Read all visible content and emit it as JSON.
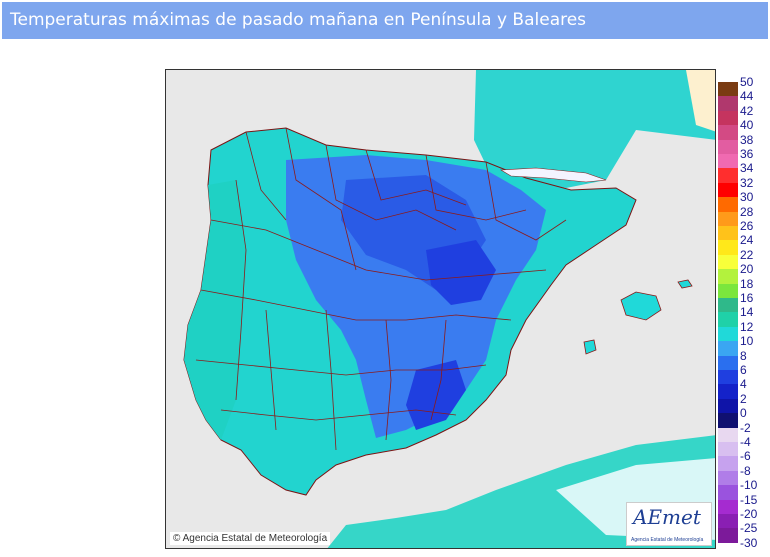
{
  "title": "Temperaturas máximas de pasado mañana en Península y Baleares",
  "copyright": "© Agencia Estatal de Meteorología",
  "logo": {
    "name": "AEmet",
    "subtitle": "Agencia Estatal de Meteorología"
  },
  "colors": {
    "sea": "#e8e8e8",
    "foreign_land": "#d9f7f7",
    "africa": "#ccf0e8",
    "france_top": "#fdf0cf",
    "boundaries": "#8b1a1a",
    "title_bar": "#7ea6ee"
  },
  "legend": {
    "labels": [
      "50",
      "44",
      "42",
      "40",
      "38",
      "36",
      "34",
      "32",
      "30",
      "28",
      "26",
      "24",
      "22",
      "20",
      "18",
      "16",
      "14",
      "12",
      "10",
      "8",
      "6",
      "4",
      "2",
      "0",
      "-2",
      "-4",
      "-6",
      "-8",
      "-10",
      "-15",
      "-20",
      "-25",
      "-30"
    ],
    "colors": [
      "#7a3b12",
      "#b0386d",
      "#c5345f",
      "#d34a84",
      "#e25da1",
      "#f06ab1",
      "#ff2e2e",
      "#ff0000",
      "#ff6a00",
      "#ff9a1a",
      "#ffc21a",
      "#ffe81a",
      "#f8ff3a",
      "#b3f23d",
      "#7be63d",
      "#2fb98a",
      "#1fd1a8",
      "#20d9d9",
      "#3aa6f2",
      "#2a6fef",
      "#1f3fe0",
      "#1422c9",
      "#0f14a8",
      "#101070",
      "#e8d8f0",
      "#d8bff0",
      "#c6a2ee",
      "#b07de8",
      "#9a53de",
      "#a52bd0",
      "#8a1fb3",
      "#7c1a9a"
    ]
  }
}
